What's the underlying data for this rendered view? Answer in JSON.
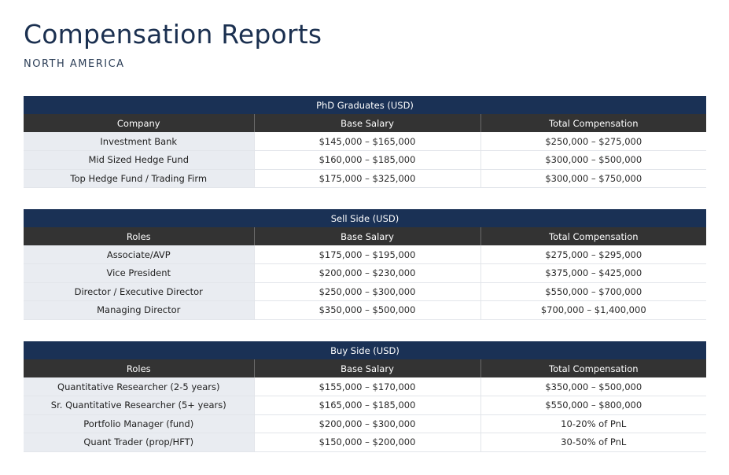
{
  "page": {
    "title": "Compensation Reports",
    "subtitle": "NORTH AMERICA"
  },
  "sections": [
    {
      "heading": "PhD Graduates (USD)",
      "columns": [
        "Company",
        "Base Salary",
        "Total Compensation"
      ],
      "rows": [
        [
          "Investment Bank",
          "$145,000 – $165,000",
          "$250,000 – $275,000"
        ],
        [
          "Mid Sized Hedge Fund",
          "$160,000 – $185,000",
          "$300,000 – $500,000"
        ],
        [
          "Top Hedge Fund / Trading Firm",
          "$175,000 – $325,000",
          "$300,000 – $750,000"
        ]
      ]
    },
    {
      "heading": "Sell Side (USD)",
      "columns": [
        "Roles",
        "Base Salary",
        "Total Compensation"
      ],
      "rows": [
        [
          "Associate/AVP",
          "$175,000 – $195,000",
          "$275,000 – $295,000"
        ],
        [
          "Vice President",
          "$200,000 – $230,000",
          "$375,000 – $425,000"
        ],
        [
          "Director / Executive Director",
          "$250,000 – $300,000",
          "$550,000 – $700,000"
        ],
        [
          "Managing Director",
          "$350,000 – $500,000",
          "$700,000 – $1,400,000"
        ]
      ]
    },
    {
      "heading": "Buy Side (USD)",
      "columns": [
        "Roles",
        "Base Salary",
        "Total Compensation"
      ],
      "rows": [
        [
          "Quantitative Researcher (2-5 years)",
          "$155,000 – $170,000",
          "$350,000 – $500,000"
        ],
        [
          "Sr. Quantitative Researcher (5+ years)",
          "$165,000 – $185,000",
          "$550,000 – $800,000"
        ],
        [
          "Portfolio Manager (fund)",
          "$200,000 – $300,000",
          "10-20% of PnL"
        ],
        [
          "Quant Trader (prop/HFT)",
          "$150,000 – $200,000",
          "30-50% of PnL"
        ]
      ]
    }
  ],
  "colors": {
    "title": "#1b3050",
    "section_header_bg": "#1a3155",
    "column_header_bg": "#333333",
    "first_column_bg": "#e9ecf1"
  }
}
